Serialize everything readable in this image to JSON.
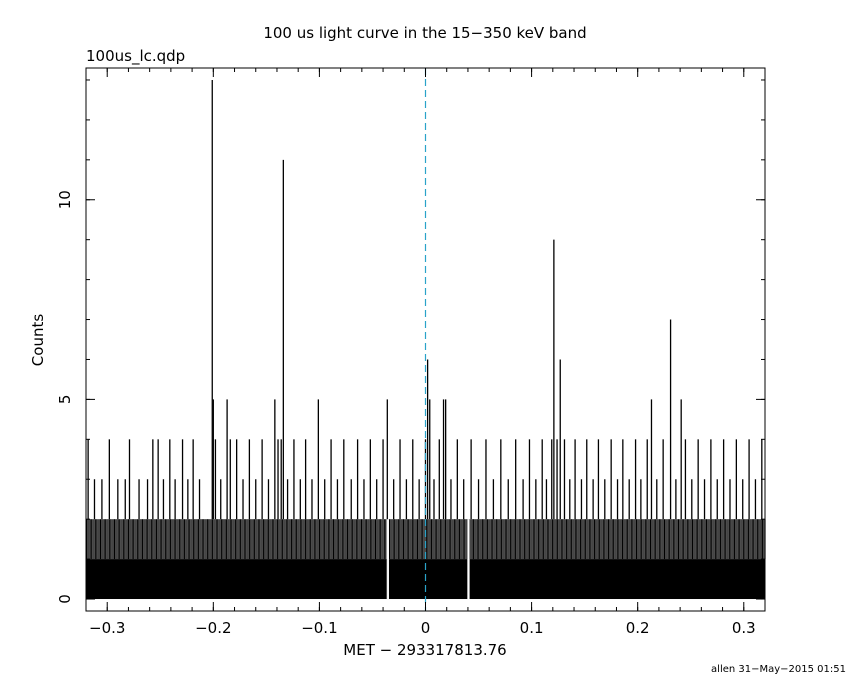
{
  "chart_data": {
    "type": "line",
    "title": "100 us light curve in the 15−350 keV band",
    "file_label": "100us_lc.qdp",
    "xlabel": "MET − 293317813.76",
    "ylabel": "Counts",
    "footer": "allen 31−May−2015 01:51",
    "xlim": [
      -0.32,
      0.32
    ],
    "ylim": [
      -0.3,
      13.3
    ],
    "xticks": [
      -0.3,
      -0.2,
      -0.1,
      0,
      0.1,
      0.2,
      0.3
    ],
    "xtick_labels": [
      "−0.3",
      "−0.2",
      "−0.1",
      "0",
      "0.1",
      "0.2",
      "0.3"
    ],
    "yticks": [
      0,
      5,
      10
    ],
    "ytick_labels": [
      "0",
      "5",
      "10"
    ],
    "bin_width": 0.0001,
    "baseline_level": 1,
    "common_level": 2,
    "common_level_gaps": [
      -0.035,
      -0.036,
      0.04,
      0.041
    ],
    "peaks": [
      {
        "x": -0.318,
        "y": 4
      },
      {
        "x": -0.312,
        "y": 3
      },
      {
        "x": -0.305,
        "y": 3
      },
      {
        "x": -0.298,
        "y": 4
      },
      {
        "x": -0.29,
        "y": 3
      },
      {
        "x": -0.283,
        "y": 3
      },
      {
        "x": -0.279,
        "y": 4
      },
      {
        "x": -0.27,
        "y": 3
      },
      {
        "x": -0.262,
        "y": 3
      },
      {
        "x": -0.257,
        "y": 4
      },
      {
        "x": -0.252,
        "y": 4
      },
      {
        "x": -0.247,
        "y": 3
      },
      {
        "x": -0.241,
        "y": 4
      },
      {
        "x": -0.236,
        "y": 3
      },
      {
        "x": -0.229,
        "y": 4
      },
      {
        "x": -0.224,
        "y": 3
      },
      {
        "x": -0.219,
        "y": 4
      },
      {
        "x": -0.213,
        "y": 3
      },
      {
        "x": -0.201,
        "y": 13
      },
      {
        "x": -0.2,
        "y": 5
      },
      {
        "x": -0.198,
        "y": 4
      },
      {
        "x": -0.193,
        "y": 3
      },
      {
        "x": -0.187,
        "y": 5
      },
      {
        "x": -0.184,
        "y": 4
      },
      {
        "x": -0.178,
        "y": 4
      },
      {
        "x": -0.172,
        "y": 3
      },
      {
        "x": -0.166,
        "y": 4
      },
      {
        "x": -0.16,
        "y": 3
      },
      {
        "x": -0.154,
        "y": 4
      },
      {
        "x": -0.148,
        "y": 3
      },
      {
        "x": -0.142,
        "y": 5
      },
      {
        "x": -0.139,
        "y": 4
      },
      {
        "x": -0.136,
        "y": 4
      },
      {
        "x": -0.134,
        "y": 11
      },
      {
        "x": -0.13,
        "y": 3
      },
      {
        "x": -0.124,
        "y": 4
      },
      {
        "x": -0.118,
        "y": 3
      },
      {
        "x": -0.113,
        "y": 4
      },
      {
        "x": -0.107,
        "y": 3
      },
      {
        "x": -0.101,
        "y": 5
      },
      {
        "x": -0.095,
        "y": 3
      },
      {
        "x": -0.089,
        "y": 4
      },
      {
        "x": -0.083,
        "y": 3
      },
      {
        "x": -0.077,
        "y": 4
      },
      {
        "x": -0.07,
        "y": 3
      },
      {
        "x": -0.064,
        "y": 4
      },
      {
        "x": -0.058,
        "y": 3
      },
      {
        "x": -0.052,
        "y": 4
      },
      {
        "x": -0.046,
        "y": 3
      },
      {
        "x": -0.04,
        "y": 4
      },
      {
        "x": -0.036,
        "y": 5
      },
      {
        "x": -0.03,
        "y": 3
      },
      {
        "x": -0.024,
        "y": 4
      },
      {
        "x": -0.018,
        "y": 3
      },
      {
        "x": -0.012,
        "y": 4
      },
      {
        "x": -0.006,
        "y": 3
      },
      {
        "x": 0.0,
        "y": 4
      },
      {
        "x": 0.002,
        "y": 6
      },
      {
        "x": 0.004,
        "y": 5
      },
      {
        "x": 0.008,
        "y": 3
      },
      {
        "x": 0.013,
        "y": 4
      },
      {
        "x": 0.017,
        "y": 5
      },
      {
        "x": 0.019,
        "y": 5
      },
      {
        "x": 0.024,
        "y": 3
      },
      {
        "x": 0.03,
        "y": 4
      },
      {
        "x": 0.036,
        "y": 3
      },
      {
        "x": 0.043,
        "y": 4
      },
      {
        "x": 0.05,
        "y": 3
      },
      {
        "x": 0.057,
        "y": 4
      },
      {
        "x": 0.064,
        "y": 3
      },
      {
        "x": 0.071,
        "y": 4
      },
      {
        "x": 0.078,
        "y": 3
      },
      {
        "x": 0.085,
        "y": 4
      },
      {
        "x": 0.092,
        "y": 3
      },
      {
        "x": 0.098,
        "y": 4
      },
      {
        "x": 0.104,
        "y": 3
      },
      {
        "x": 0.11,
        "y": 4
      },
      {
        "x": 0.114,
        "y": 3
      },
      {
        "x": 0.119,
        "y": 4
      },
      {
        "x": 0.121,
        "y": 9
      },
      {
        "x": 0.124,
        "y": 4
      },
      {
        "x": 0.127,
        "y": 6
      },
      {
        "x": 0.131,
        "y": 4
      },
      {
        "x": 0.136,
        "y": 3
      },
      {
        "x": 0.141,
        "y": 4
      },
      {
        "x": 0.147,
        "y": 3
      },
      {
        "x": 0.152,
        "y": 4
      },
      {
        "x": 0.158,
        "y": 3
      },
      {
        "x": 0.163,
        "y": 4
      },
      {
        "x": 0.169,
        "y": 3
      },
      {
        "x": 0.175,
        "y": 4
      },
      {
        "x": 0.181,
        "y": 3
      },
      {
        "x": 0.186,
        "y": 4
      },
      {
        "x": 0.192,
        "y": 3
      },
      {
        "x": 0.198,
        "y": 4
      },
      {
        "x": 0.203,
        "y": 3
      },
      {
        "x": 0.209,
        "y": 4
      },
      {
        "x": 0.213,
        "y": 5
      },
      {
        "x": 0.218,
        "y": 3
      },
      {
        "x": 0.224,
        "y": 4
      },
      {
        "x": 0.231,
        "y": 7
      },
      {
        "x": 0.236,
        "y": 3
      },
      {
        "x": 0.241,
        "y": 5
      },
      {
        "x": 0.245,
        "y": 4
      },
      {
        "x": 0.251,
        "y": 3
      },
      {
        "x": 0.257,
        "y": 4
      },
      {
        "x": 0.263,
        "y": 3
      },
      {
        "x": 0.269,
        "y": 4
      },
      {
        "x": 0.275,
        "y": 3
      },
      {
        "x": 0.281,
        "y": 4
      },
      {
        "x": 0.287,
        "y": 3
      },
      {
        "x": 0.293,
        "y": 4
      },
      {
        "x": 0.299,
        "y": 3
      },
      {
        "x": 0.305,
        "y": 4
      },
      {
        "x": 0.311,
        "y": 3
      },
      {
        "x": 0.317,
        "y": 4
      }
    ],
    "reference_line": {
      "x": 0,
      "style": "dashed",
      "color": "#2aa3c9"
    },
    "grid": false,
    "legend": "none"
  },
  "colors": {
    "line": "#000000",
    "background": "#ffffff",
    "reference": "#2aa3c9"
  }
}
